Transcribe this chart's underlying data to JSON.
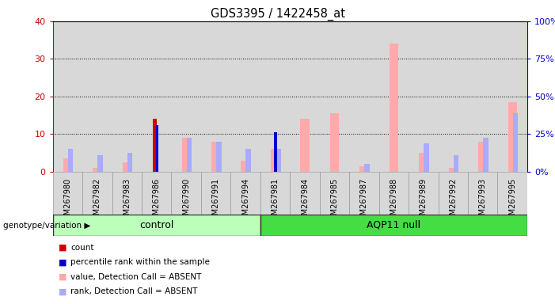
{
  "title": "GDS3395 / 1422458_at",
  "samples": [
    "GSM267980",
    "GSM267982",
    "GSM267983",
    "GSM267986",
    "GSM267990",
    "GSM267991",
    "GSM267994",
    "GSM267981",
    "GSM267984",
    "GSM267985",
    "GSM267987",
    "GSM267988",
    "GSM267989",
    "GSM267992",
    "GSM267993",
    "GSM267995"
  ],
  "count": [
    0,
    0,
    0,
    14,
    0,
    0,
    0,
    0,
    0,
    0,
    0,
    0,
    0,
    0,
    0,
    0
  ],
  "count_color": "#cc0000",
  "percentile_rank": [
    0,
    0,
    0,
    12.5,
    0,
    0,
    0,
    10.5,
    0,
    0,
    0,
    0,
    0,
    0,
    0,
    0
  ],
  "percentile_rank_color": "#0000cc",
  "value_absent": [
    3.5,
    1.0,
    2.5,
    0,
    9.0,
    8.0,
    3.0,
    6.0,
    14.0,
    15.5,
    1.5,
    34.0,
    5.0,
    1.0,
    8.0,
    18.5
  ],
  "value_absent_color": "#ffaaaa",
  "rank_absent": [
    6.0,
    4.5,
    5.0,
    0,
    9.0,
    8.0,
    6.0,
    6.0,
    0,
    0,
    2.0,
    0,
    7.5,
    4.5,
    9.0,
    15.5
  ],
  "rank_absent_color": "#aaaaff",
  "ylim_left": [
    0,
    40
  ],
  "ylim_right": [
    0,
    100
  ],
  "yticks_left": [
    0,
    10,
    20,
    30,
    40
  ],
  "yticks_right": [
    0,
    25,
    50,
    75,
    100
  ],
  "ylabel_left_color": "#cc0000",
  "ylabel_right_color": "#0000cc",
  "bar_bg_color": "#d8d8d8",
  "ctrl_count": 7,
  "aqp_count": 9,
  "group_control_label": "control",
  "group_aqp11_label": "AQP11 null",
  "ctrl_color": "#bbffbb",
  "aqp_color": "#44dd44",
  "genotype_label": "genotype/variation",
  "legend_entries": [
    "count",
    "percentile rank within the sample",
    "value, Detection Call = ABSENT",
    "rank, Detection Call = ABSENT"
  ],
  "legend_colors": [
    "#cc0000",
    "#0000cc",
    "#ffaaaa",
    "#aaaaff"
  ]
}
